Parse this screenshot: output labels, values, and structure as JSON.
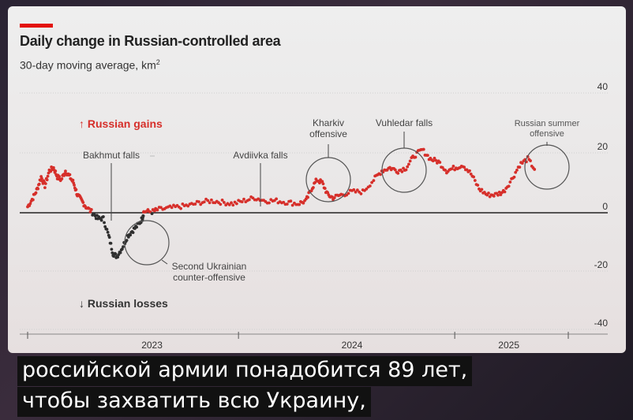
{
  "chart_data": {
    "type": "scatter",
    "title": "Daily change in Russian-controlled area",
    "subtitle": "30-day moving average, km",
    "subtitle_unit_sup": "2",
    "ylim": [
      -40,
      40
    ],
    "yticks": [
      "40",
      "20",
      "0",
      "-20",
      "-40"
    ],
    "xticks": [
      {
        "label": "2023",
        "t": 0.23
      },
      {
        "label": "2024",
        "t": 0.6
      },
      {
        "label": "2025",
        "t": 0.89
      }
    ],
    "gains_label": "↑ Russian gains",
    "losses_label": "↓ Russian losses",
    "annotations": [
      {
        "label": "Bakhmut falls",
        "date": "2023-05-20"
      },
      {
        "label": "Avdiivka falls",
        "date": "2024-02-17"
      },
      {
        "label": "Kharkiv offensive",
        "date": "2024-05-10"
      },
      {
        "label": "Vuhledar falls",
        "date": "2024-10-01"
      },
      {
        "label": "Russian summer offensive",
        "date": "2025-06-15"
      },
      {
        "label": "Second Ukrainian counter-offensive",
        "date": "2023-06-15"
      }
    ],
    "colors": {
      "gain": "#d62f2a",
      "loss": "#2f2f2f",
      "axis": "#222222",
      "grid": "#cfcfcf"
    },
    "series": [
      {
        "points": [
          [
            0.0,
            2
          ],
          [
            0.01,
            5
          ],
          [
            0.018,
            8
          ],
          [
            0.025,
            12
          ],
          [
            0.032,
            9
          ],
          [
            0.04,
            14
          ],
          [
            0.048,
            15
          ],
          [
            0.055,
            12
          ],
          [
            0.062,
            11
          ],
          [
            0.07,
            14
          ],
          [
            0.078,
            12
          ],
          [
            0.085,
            10
          ],
          [
            0.092,
            6
          ],
          [
            0.1,
            4
          ],
          [
            0.108,
            2
          ],
          [
            0.12,
            0
          ],
          [
            0.13,
            -2
          ],
          [
            0.14,
            -2
          ],
          [
            0.15,
            -8
          ],
          [
            0.158,
            -14
          ],
          [
            0.165,
            -15
          ],
          [
            0.175,
            -12
          ],
          [
            0.185,
            -8
          ],
          [
            0.195,
            -6
          ],
          [
            0.205,
            -4
          ],
          [
            0.212,
            -2
          ],
          [
            0.215,
            0.5
          ],
          [
            0.23,
            0.3
          ],
          [
            0.24,
            1
          ],
          [
            0.26,
            1.5
          ],
          [
            0.28,
            2
          ],
          [
            0.3,
            2.5
          ],
          [
            0.32,
            3.5
          ],
          [
            0.34,
            4
          ],
          [
            0.36,
            3.5
          ],
          [
            0.38,
            3
          ],
          [
            0.4,
            4
          ],
          [
            0.42,
            5
          ],
          [
            0.44,
            4
          ],
          [
            0.46,
            4
          ],
          [
            0.48,
            3.5
          ],
          [
            0.5,
            3
          ],
          [
            0.515,
            4
          ],
          [
            0.525,
            8
          ],
          [
            0.535,
            11
          ],
          [
            0.545,
            10
          ],
          [
            0.555,
            6
          ],
          [
            0.565,
            5
          ],
          [
            0.58,
            6
          ],
          [
            0.6,
            7
          ],
          [
            0.62,
            7
          ],
          [
            0.64,
            11
          ],
          [
            0.655,
            14
          ],
          [
            0.67,
            15
          ],
          [
            0.685,
            14
          ],
          [
            0.7,
            15
          ],
          [
            0.715,
            19
          ],
          [
            0.73,
            21
          ],
          [
            0.745,
            18
          ],
          [
            0.76,
            17
          ],
          [
            0.775,
            14
          ],
          [
            0.79,
            15
          ],
          [
            0.805,
            16
          ],
          [
            0.82,
            13
          ],
          [
            0.835,
            8
          ],
          [
            0.85,
            6
          ],
          [
            0.865,
            6
          ],
          [
            0.88,
            7
          ],
          [
            0.895,
            11
          ],
          [
            0.91,
            16
          ],
          [
            0.925,
            18
          ],
          [
            0.94,
            14
          ]
        ]
      }
    ]
  },
  "captions": {
    "line1": "российской армии понадобится 89 лет,",
    "line2": "чтобы захватить всю Украину,"
  }
}
